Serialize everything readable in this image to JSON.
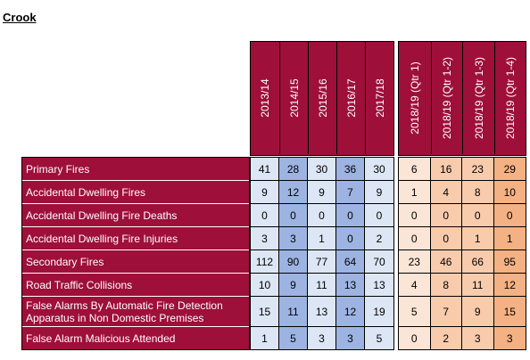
{
  "title": "Crook",
  "colors": {
    "header": "#9e0f3a",
    "blue_light": "#dce6f4",
    "blue_dark": "#9db4e2",
    "orange_light": "#fbe5d6",
    "orange_mid": "#f8cbad",
    "orange_dark": "#f4b183"
  },
  "annual_headers": [
    "2013/14",
    "2014/15",
    "2015/16",
    "2016/17",
    "2017/18"
  ],
  "quarter_headers": [
    "2018/19 (Qtr 1)",
    "2018/19 (Qtr 1-2)",
    "2018/19 (Qtr 1-3)",
    "2018/19 (Qtr 1-4)"
  ],
  "rows": [
    {
      "label": "Primary Fires",
      "annual": [
        "41",
        "28",
        "30",
        "36",
        "30"
      ],
      "quarterly": [
        "6",
        "16",
        "23",
        "29"
      ]
    },
    {
      "label": "Accidental Dwelling Fires",
      "annual": [
        "9",
        "12",
        "9",
        "7",
        "9"
      ],
      "quarterly": [
        "1",
        "4",
        "8",
        "10"
      ]
    },
    {
      "label": "Accidental Dwelling Fire Deaths",
      "annual": [
        "0",
        "0",
        "0",
        "0",
        "0"
      ],
      "quarterly": [
        "0",
        "0",
        "0",
        "0"
      ]
    },
    {
      "label": "Accidental Dwelling Fire Injuries",
      "annual": [
        "3",
        "3",
        "1",
        "0",
        "2"
      ],
      "quarterly": [
        "0",
        "0",
        "1",
        "1"
      ]
    },
    {
      "label": "Secondary Fires",
      "annual": [
        "112",
        "90",
        "77",
        "64",
        "70"
      ],
      "quarterly": [
        "23",
        "46",
        "66",
        "95"
      ]
    },
    {
      "label": "Road Traffic Collisions",
      "annual": [
        "10",
        "9",
        "11",
        "13",
        "13"
      ],
      "quarterly": [
        "4",
        "8",
        "11",
        "12"
      ]
    },
    {
      "label": "False Alarms By Automatic Fire Detection Apparatus in Non Domestic Premises",
      "annual": [
        "15",
        "11",
        "13",
        "12",
        "19"
      ],
      "quarterly": [
        "5",
        "7",
        "9",
        "15"
      ]
    },
    {
      "label": "False Alarm Malicious Attended",
      "annual": [
        "1",
        "5",
        "3",
        "3",
        "5"
      ],
      "quarterly": [
        "0",
        "2",
        "3",
        "3"
      ]
    }
  ]
}
